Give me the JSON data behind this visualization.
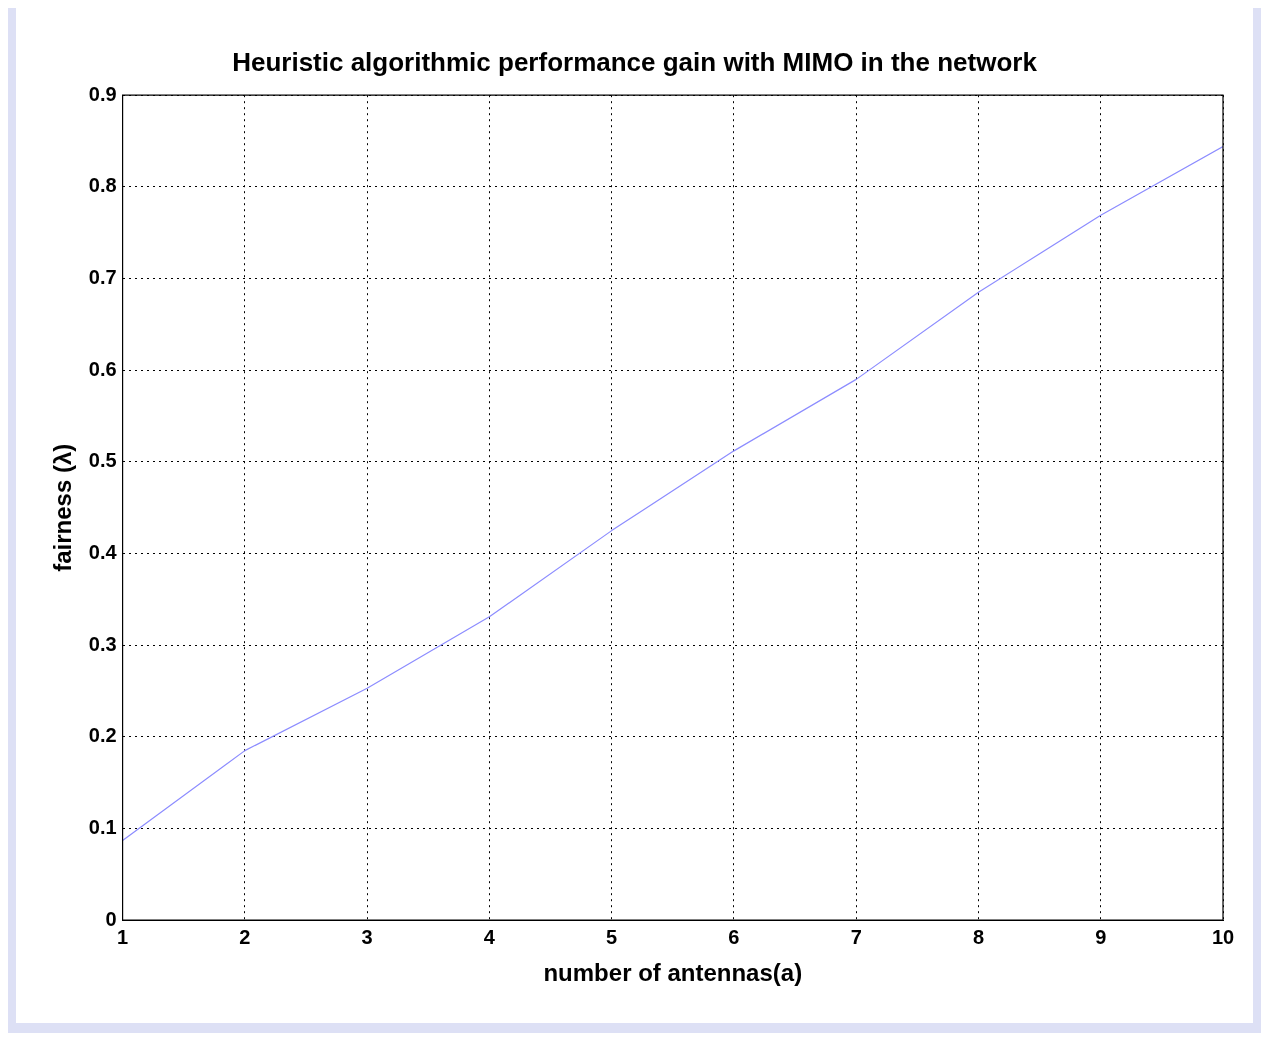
{
  "chart_data": {
    "type": "line",
    "title": "Heuristic algorithmic performance gain with MIMO in the network",
    "xlabel": "number of antennas(a)",
    "ylabel": "fairness (λ)",
    "x": [
      1,
      2,
      3,
      4,
      5,
      6,
      7,
      8,
      9,
      10
    ],
    "series": [
      {
        "color": "#8c8cff",
        "values": [
          0.087,
          0.185,
          0.253,
          0.331,
          0.425,
          0.512,
          0.59,
          0.685,
          0.769,
          0.844
        ]
      }
    ],
    "xlim": [
      1,
      10
    ],
    "xticks": [
      1,
      2,
      3,
      4,
      5,
      6,
      7,
      8,
      9,
      10
    ],
    "ylim": [
      0,
      0.9
    ],
    "yticks": [
      0,
      0.1,
      0.2,
      0.3,
      0.4,
      0.5,
      0.6,
      0.7,
      0.8,
      0.9
    ],
    "grid": true,
    "marker": "none",
    "line_style": "solid",
    "legend": false
  }
}
